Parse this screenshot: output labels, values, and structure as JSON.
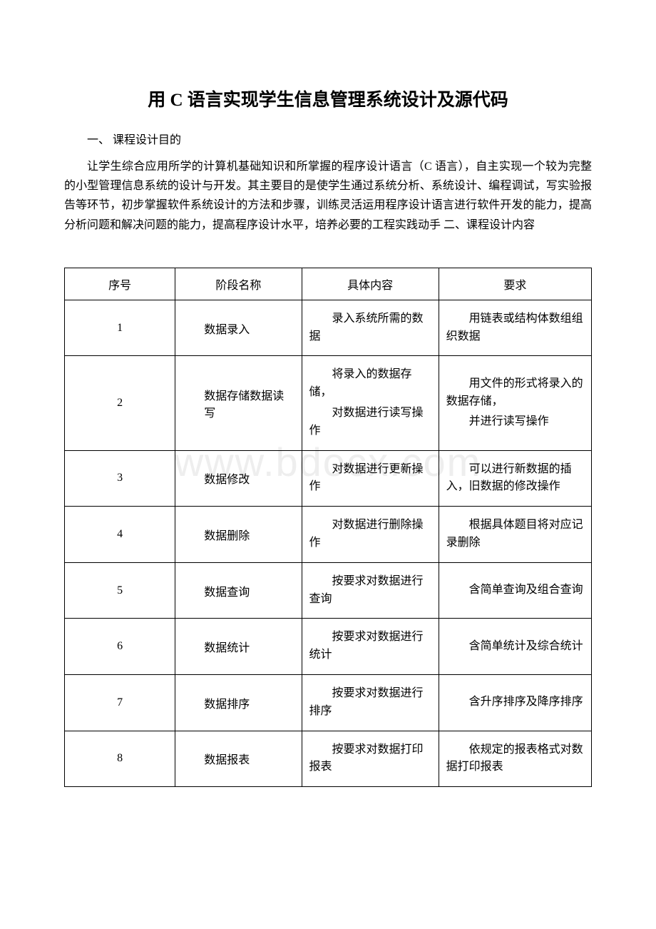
{
  "title": "用 C 语言实现学生信息管理系统设计及源代码",
  "section1": "一、 课程设计目的",
  "paragraph1": "让学生综合应用所学的计算机基础知识和所掌握的程序设计语言（C 语言），自主实现一个较为完整的小型管理信息系统的设计与开发。其主要目的是使学生通过系统分析、系统设计、编程调试，写实验报告等环节，初步掌握软件系统设计的方法和步骤，训练灵活运用程序设计语言进行软件开发的能力，提高分析问题和解决问题的能力，提高程序设计水平，培养必要的工程实践动手 二、课程设计内容",
  "watermark": "www.bdocx.com",
  "table": {
    "headers": {
      "col1": "序号",
      "col2": "阶段名称",
      "col3": "具体内容",
      "col4": "要求"
    },
    "rows": [
      {
        "num": "1",
        "stage": "数据录入",
        "content": "录入系统所需的数据",
        "requirement": "用链表或结构体数组组织数据"
      },
      {
        "num": "2",
        "stage": "数据存储数据读写",
        "content_a": "将录入的数据存储，",
        "content_b": "对数据进行读写操作",
        "requirement_a": "用文件的形式将录入的数据存储，",
        "requirement_b": "并进行读写操作"
      },
      {
        "num": "3",
        "stage": "数据修改",
        "content": "对数据进行更新操作",
        "requirement": "可以进行新数据的插入，旧数据的修改操作"
      },
      {
        "num": "4",
        "stage": "数据删除",
        "content": "对数据进行删除操作",
        "requirement": "根据具体题目将对应记录删除"
      },
      {
        "num": "5",
        "stage": "数据查询",
        "content": "按要求对数据进行查询",
        "requirement": "含简单查询及组合查询"
      },
      {
        "num": "6",
        "stage": "数据统计",
        "content": "按要求对数据进行统计",
        "requirement": "含简单统计及综合统计"
      },
      {
        "num": "7",
        "stage": "数据排序",
        "content": "按要求对数据进行排序",
        "requirement": "含升序排序及降序排序"
      },
      {
        "num": "8",
        "stage": "数据报表",
        "content": "按要求对数据打印报表",
        "requirement": "依规定的报表格式对数据打印报表"
      }
    ]
  }
}
